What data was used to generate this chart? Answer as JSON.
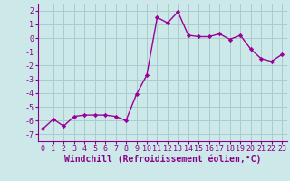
{
  "x": [
    0,
    1,
    2,
    3,
    4,
    5,
    6,
    7,
    8,
    9,
    10,
    11,
    12,
    13,
    14,
    15,
    16,
    17,
    18,
    19,
    20,
    21,
    22,
    23
  ],
  "y": [
    -6.6,
    -5.9,
    -6.4,
    -5.7,
    -5.6,
    -5.6,
    -5.6,
    -5.7,
    -6.0,
    -4.1,
    -2.7,
    1.5,
    1.1,
    1.9,
    0.2,
    0.1,
    0.1,
    0.3,
    -0.1,
    0.2,
    -0.8,
    -1.5,
    -1.7,
    -1.2
  ],
  "line_color": "#990099",
  "marker": "D",
  "markersize": 2.2,
  "linewidth": 1.0,
  "bg_color": "#cce8e8",
  "grid_color": "#aacccc",
  "xlabel": "Windchill (Refroidissement éolien,°C)",
  "xlabel_fontsize": 7,
  "xlim": [
    -0.5,
    23.5
  ],
  "ylim": [
    -7.5,
    2.5
  ],
  "yticks": [
    -7,
    -6,
    -5,
    -4,
    -3,
    -2,
    -1,
    0,
    1,
    2
  ],
  "xticks": [
    0,
    1,
    2,
    3,
    4,
    5,
    6,
    7,
    8,
    9,
    10,
    11,
    12,
    13,
    14,
    15,
    16,
    17,
    18,
    19,
    20,
    21,
    22,
    23
  ],
  "tick_fontsize": 6,
  "text_color": "#880088"
}
